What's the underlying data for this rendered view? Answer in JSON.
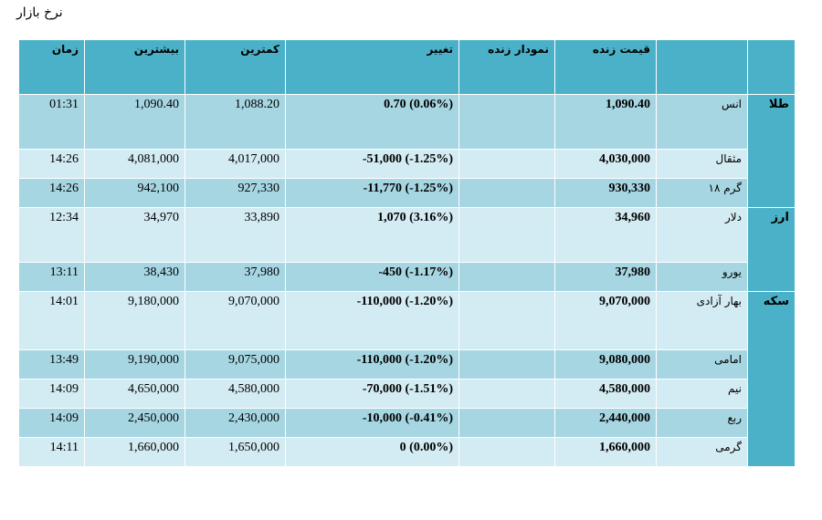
{
  "page_title": "نرخ بازار",
  "headers": {
    "time": "زمان",
    "high": "بیشترین",
    "low": "کمترین",
    "change": "تغییر",
    "chart": "نمودار زنده",
    "price": "قیمت زنده",
    "name": "",
    "category": ""
  },
  "groups": [
    {
      "category": "طلا",
      "rows": [
        {
          "name": "انس",
          "price": "1,090.40",
          "change": "0.70 (0.06%)",
          "low": "1,088.20",
          "high": "1,090.40",
          "time": "01:31"
        },
        {
          "name": "مثقال",
          "price": "4,030,000",
          "change": "-51,000 (-1.25%)",
          "low": "4,017,000",
          "high": "4,081,000",
          "time": "14:26"
        },
        {
          "name": "گرم ۱۸",
          "price": "930,330",
          "change": "-11,770 (-1.25%)",
          "low": "927,330",
          "high": "942,100",
          "time": "14:26"
        }
      ]
    },
    {
      "category": "ارز",
      "rows": [
        {
          "name": "دلار",
          "price": "34,960",
          "change": "1,070 (3.16%)",
          "low": "33,890",
          "high": "34,970",
          "time": "12:34"
        },
        {
          "name": "یورو",
          "price": "37,980",
          "change": "-450 (-1.17%)",
          "low": "37,980",
          "high": "38,430",
          "time": "13:11"
        }
      ]
    },
    {
      "category": "سکه",
      "rows": [
        {
          "name": "بهار آزادی",
          "price": "9,070,000",
          "change": "-110,000 (-1.20%)",
          "low": "9,070,000",
          "high": "9,180,000",
          "time": "14:01"
        },
        {
          "name": "امامی",
          "price": "9,080,000",
          "change": "-110,000 (-1.20%)",
          "low": "9,075,000",
          "high": "9,190,000",
          "time": "13:49"
        },
        {
          "name": "نیم",
          "price": "4,580,000",
          "change": "-70,000 (-1.51%)",
          "low": "4,580,000",
          "high": "4,650,000",
          "time": "14:09"
        },
        {
          "name": "ربع",
          "price": "2,440,000",
          "change": "-10,000 (-0.41%)",
          "low": "2,430,000",
          "high": "2,450,000",
          "time": "14:09"
        },
        {
          "name": "گرمی",
          "price": "1,660,000",
          "change": "0 (0.00%)",
          "low": "1,650,000",
          "high": "1,660,000",
          "time": "14:11"
        }
      ]
    }
  ],
  "colors": {
    "header_bg": "#4bb1c8",
    "row_dark": "#a7d6e3",
    "row_light": "#d3ebf2"
  }
}
